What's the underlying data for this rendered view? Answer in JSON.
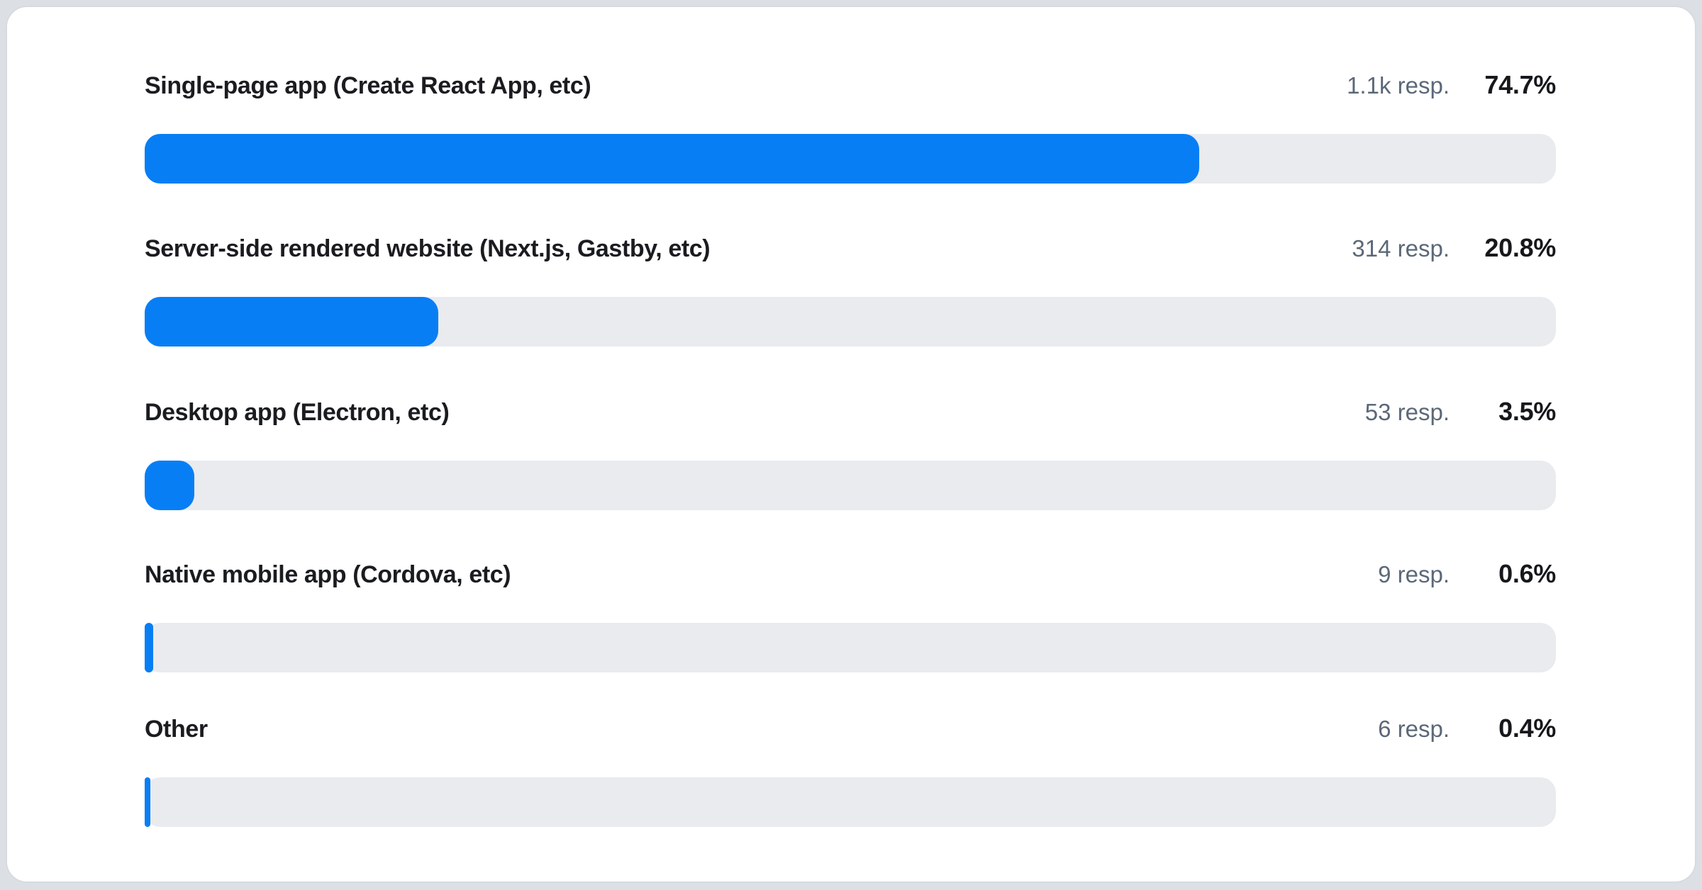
{
  "colors": {
    "page_bg": "#dce0e5",
    "card_bg": "#ffffff",
    "card_border": "#d7dade",
    "bar_fill": "#087ef5",
    "bar_track": "#e9ebee",
    "label_text": "#1a1c20",
    "responses_text": "#5b6878",
    "percent_text": "#16181c"
  },
  "rows": [
    {
      "label": "Single-page app (Create React App, etc)",
      "responses": "1.1k resp.",
      "percent": "74.7%",
      "value": 74.7
    },
    {
      "label": "Server-side rendered website (Next.js, Gastby, etc)",
      "responses": "314 resp.",
      "percent": "20.8%",
      "value": 20.8
    },
    {
      "label": "Desktop app (Electron, etc)",
      "responses": "53 resp.",
      "percent": "3.5%",
      "value": 3.5
    },
    {
      "label": "Native mobile app (Cordova, etc)",
      "responses": "9 resp.",
      "percent": "0.6%",
      "value": 0.6
    },
    {
      "label": "Other",
      "responses": "6 resp.",
      "percent": "0.4%",
      "value": 0.4
    }
  ],
  "chart_data": {
    "type": "bar",
    "orientation": "horizontal",
    "title": "",
    "categories": [
      "Single-page app (Create React App, etc)",
      "Server-side rendered website (Next.js, Gastby, etc)",
      "Desktop app (Electron, etc)",
      "Native mobile app (Cordova, etc)",
      "Other"
    ],
    "values": [
      74.7,
      20.8,
      3.5,
      0.6,
      0.4
    ],
    "value_labels": [
      "74.7%",
      "20.8%",
      "3.5%",
      "0.6%",
      "0.4%"
    ],
    "response_counts": [
      "1.1k resp.",
      "314 resp.",
      "53 resp.",
      "9 resp.",
      "6 resp."
    ],
    "unit": "%",
    "xlim": [
      0,
      100
    ],
    "grid": false,
    "legend": false
  }
}
